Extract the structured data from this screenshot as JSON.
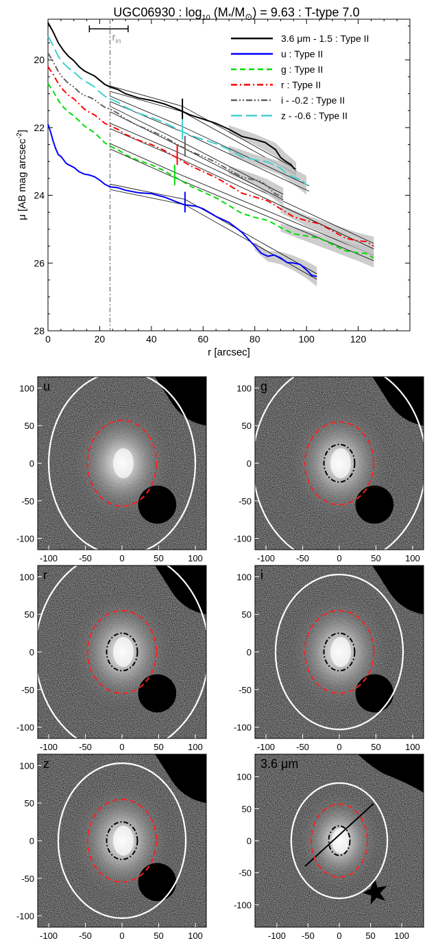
{
  "figure": {
    "title_parts": [
      "UGC06930 : log",
      "10",
      " (M",
      "*",
      "/M",
      "⊙",
      ") = 9.63 : T-type 7.0"
    ],
    "title_text": "UGC06930 : log10 (M*/M⊙) = 9.63 : T-type 7.0"
  },
  "chart_data": [
    {
      "type": "line",
      "title": "UGC06930 : log10 (M*/M⊙) = 9.63 : T-type 7.0",
      "xlabel": "r [arcsec]",
      "ylabel": "μ [AB mag arcsec⁻²]",
      "xlim": [
        0,
        140
      ],
      "ylim": [
        28,
        18.8
      ],
      "x_ticks": [
        "0",
        "20",
        "40",
        "60",
        "80",
        "100",
        "120"
      ],
      "y_ticks": [
        "20",
        "22",
        "24",
        "26",
        "28"
      ],
      "grid": false,
      "legend_position": "top-right",
      "r_in_label": "r",
      "r_in_sub": "in",
      "r_in": 24,
      "r_in_range": [
        16,
        31
      ],
      "series": [
        {
          "name": "3.6 μm - 1.5 : Type II",
          "color": "#000000",
          "dash": "solid",
          "x": [
            0,
            4,
            8,
            12,
            16,
            20,
            24,
            30,
            40,
            50,
            60,
            70,
            80,
            88,
            92,
            96
          ],
          "y": [
            18.9,
            19.5,
            19.9,
            20.2,
            20.4,
            20.6,
            20.8,
            21.0,
            21.2,
            21.45,
            21.75,
            22.05,
            22.35,
            22.65,
            23.0,
            23.3
          ],
          "fits": [
            {
              "x": [
                24,
                52
              ],
              "y": [
                20.85,
                21.45
              ]
            },
            {
              "x": [
                52,
                96
              ],
              "y": [
                21.45,
                23.3
              ]
            }
          ],
          "break": 52
        },
        {
          "name": "u : Type II",
          "color": "#0000ff",
          "dash": "solid",
          "x": [
            0,
            2,
            4,
            6,
            8,
            12,
            16,
            20,
            24,
            30,
            40,
            50,
            55,
            60,
            70,
            80,
            85,
            90,
            95,
            100,
            104
          ],
          "y": [
            21.9,
            22.4,
            22.8,
            22.95,
            23.1,
            23.3,
            23.4,
            23.55,
            23.75,
            23.85,
            23.95,
            24.2,
            24.3,
            24.4,
            24.8,
            25.5,
            25.8,
            25.85,
            26.0,
            26.2,
            26.4
          ],
          "fits": [
            {
              "x": [
                24,
                53
              ],
              "y": [
                23.75,
                24.2
              ]
            },
            {
              "x": [
                53,
                104
              ],
              "y": [
                24.2,
                26.4
              ]
            }
          ],
          "break": 53
        },
        {
          "name": "g : Type II",
          "color": "#00dd00",
          "dash": "dash",
          "x": [
            0,
            4,
            8,
            12,
            16,
            20,
            24,
            30,
            40,
            50,
            60,
            70,
            80,
            90,
            100,
            110,
            120,
            126
          ],
          "y": [
            20.7,
            21.2,
            21.55,
            21.8,
            22.05,
            22.3,
            22.55,
            22.8,
            23.1,
            23.5,
            23.9,
            24.3,
            24.65,
            24.95,
            25.2,
            25.45,
            25.7,
            25.85
          ],
          "fits": [
            {
              "x": [
                24,
                49
              ],
              "y": [
                22.55,
                23.4
              ]
            },
            {
              "x": [
                49,
                126
              ],
              "y": [
                23.4,
                25.85
              ]
            }
          ],
          "break": 49
        },
        {
          "name": "r : Type II",
          "color": "#ff0000",
          "dash": "dashdot",
          "x": [
            0,
            4,
            8,
            12,
            16,
            20,
            24,
            30,
            40,
            50,
            60,
            70,
            80,
            90,
            100,
            110,
            120,
            126
          ],
          "y": [
            20.2,
            20.7,
            21.05,
            21.3,
            21.55,
            21.75,
            21.95,
            22.2,
            22.5,
            22.9,
            23.3,
            23.7,
            24.05,
            24.4,
            24.75,
            25.05,
            25.35,
            25.5
          ],
          "fits": [
            {
              "x": [
                24,
                50
              ],
              "y": [
                21.95,
                22.8
              ]
            },
            {
              "x": [
                50,
                126
              ],
              "y": [
                22.8,
                25.5
              ]
            }
          ],
          "break": 50
        },
        {
          "name": "i - -0.2 : Type II",
          "color": "#606060",
          "dash": "dashdotdot",
          "x": [
            0,
            4,
            8,
            12,
            16,
            20,
            24,
            30,
            40,
            50,
            60,
            70,
            80,
            85,
            91
          ],
          "y": [
            19.8,
            20.35,
            20.7,
            20.95,
            21.1,
            21.3,
            21.45,
            21.75,
            22.1,
            22.5,
            22.85,
            23.25,
            23.55,
            23.75,
            24.05
          ],
          "fits": [
            {
              "x": [
                24,
                53
              ],
              "y": [
                21.45,
                22.55
              ]
            },
            {
              "x": [
                53,
                91
              ],
              "y": [
                22.55,
                24.05
              ]
            }
          ],
          "break": 53
        },
        {
          "name": "z - -0.6 : Type II",
          "color": "#40d0d0",
          "dash": "longdash",
          "x": [
            0,
            4,
            8,
            12,
            16,
            20,
            24,
            30,
            40,
            50,
            60,
            70,
            80,
            90,
            96,
            100
          ],
          "y": [
            19.3,
            19.9,
            20.25,
            20.5,
            20.7,
            20.95,
            21.15,
            21.4,
            21.7,
            22.05,
            22.35,
            22.65,
            22.95,
            23.2,
            23.5,
            23.7
          ],
          "fits": [
            {
              "x": [
                24,
                52
              ],
              "y": [
                21.15,
                22.05
              ]
            },
            {
              "x": [
                52,
                101
              ],
              "y": [
                22.05,
                23.8
              ]
            }
          ],
          "break": 52
        }
      ]
    },
    {
      "type": "image-grid",
      "panels": [
        {
          "label": "u",
          "xlim": [
            -115,
            115
          ],
          "ylim": [
            -115,
            115
          ],
          "x_ticks": [
            "-100",
            "-50",
            "0",
            "50",
            "100"
          ],
          "y_ticks": [
            "100",
            "50",
            "0",
            "-50",
            "-100"
          ],
          "outer_ellipse": {
            "rx": 100,
            "ry": 122
          },
          "break_ellipse": {
            "rx": 47,
            "ry": 57
          },
          "inner_ellipse": null
        },
        {
          "label": "g",
          "xlim": [
            -115,
            115
          ],
          "ylim": [
            -115,
            115
          ],
          "x_ticks": [
            "-100",
            "-50",
            "0",
            "50",
            "100"
          ],
          "y_ticks": [
            "100",
            "50",
            "0",
            "-50",
            "-100"
          ],
          "outer_ellipse": {
            "rx": 118,
            "ry": 135
          },
          "break_ellipse": {
            "rx": 47,
            "ry": 55
          },
          "inner_ellipse": {
            "rx": 21,
            "ry": 25
          }
        },
        {
          "label": "r",
          "xlim": [
            -115,
            115
          ],
          "ylim": [
            -115,
            115
          ],
          "x_ticks": [
            "-100",
            "-50",
            "0",
            "50",
            "100"
          ],
          "y_ticks": [
            "100",
            "50",
            "0",
            "-50",
            "-100"
          ],
          "outer_ellipse": {
            "rx": 118,
            "ry": 135
          },
          "break_ellipse": {
            "rx": 47,
            "ry": 55
          },
          "inner_ellipse": {
            "rx": 21,
            "ry": 25
          }
        },
        {
          "label": "i",
          "xlim": [
            -115,
            115
          ],
          "ylim": [
            -115,
            115
          ],
          "x_ticks": [
            "-100",
            "-50",
            "0",
            "50",
            "100"
          ],
          "y_ticks": [
            "100",
            "50",
            "0",
            "-50",
            "-100"
          ],
          "outer_ellipse": {
            "rx": 87,
            "ry": 103
          },
          "break_ellipse": {
            "rx": 47,
            "ry": 55
          },
          "inner_ellipse": {
            "rx": 21,
            "ry": 25
          }
        },
        {
          "label": "z",
          "xlim": [
            -115,
            115
          ],
          "ylim": [
            -115,
            115
          ],
          "x_ticks": [
            "-100",
            "-50",
            "0",
            "50",
            "100"
          ],
          "y_ticks": [
            "100",
            "50",
            "0",
            "-50",
            "-100"
          ],
          "outer_ellipse": {
            "rx": 87,
            "ry": 103
          },
          "break_ellipse": {
            "rx": 47,
            "ry": 55
          },
          "inner_ellipse": {
            "rx": 21,
            "ry": 25
          }
        },
        {
          "label": "3.6 μm",
          "xlim": [
            -135,
            135
          ],
          "ylim": [
            -135,
            135
          ],
          "x_ticks": [
            "-100",
            "-50",
            "0",
            "50",
            "100"
          ],
          "y_ticks": [
            "100",
            "50",
            "0",
            "-50",
            "-100"
          ],
          "outer_ellipse": {
            "rx": 77,
            "ry": 90
          },
          "break_ellipse": {
            "rx": 45,
            "ry": 57
          },
          "inner_ellipse": {
            "rx": 17,
            "ry": 23
          }
        }
      ]
    }
  ],
  "colors": {
    "background": "#ffffff",
    "axis": "#000000",
    "fit_line": "#000000",
    "r_in_line": "#888888",
    "panel_outer_ellipse": "#ffffff",
    "panel_break_ellipse": "#ff2020",
    "panel_inner_ellipse": "#000000",
    "panel_label": "#ffffff"
  }
}
